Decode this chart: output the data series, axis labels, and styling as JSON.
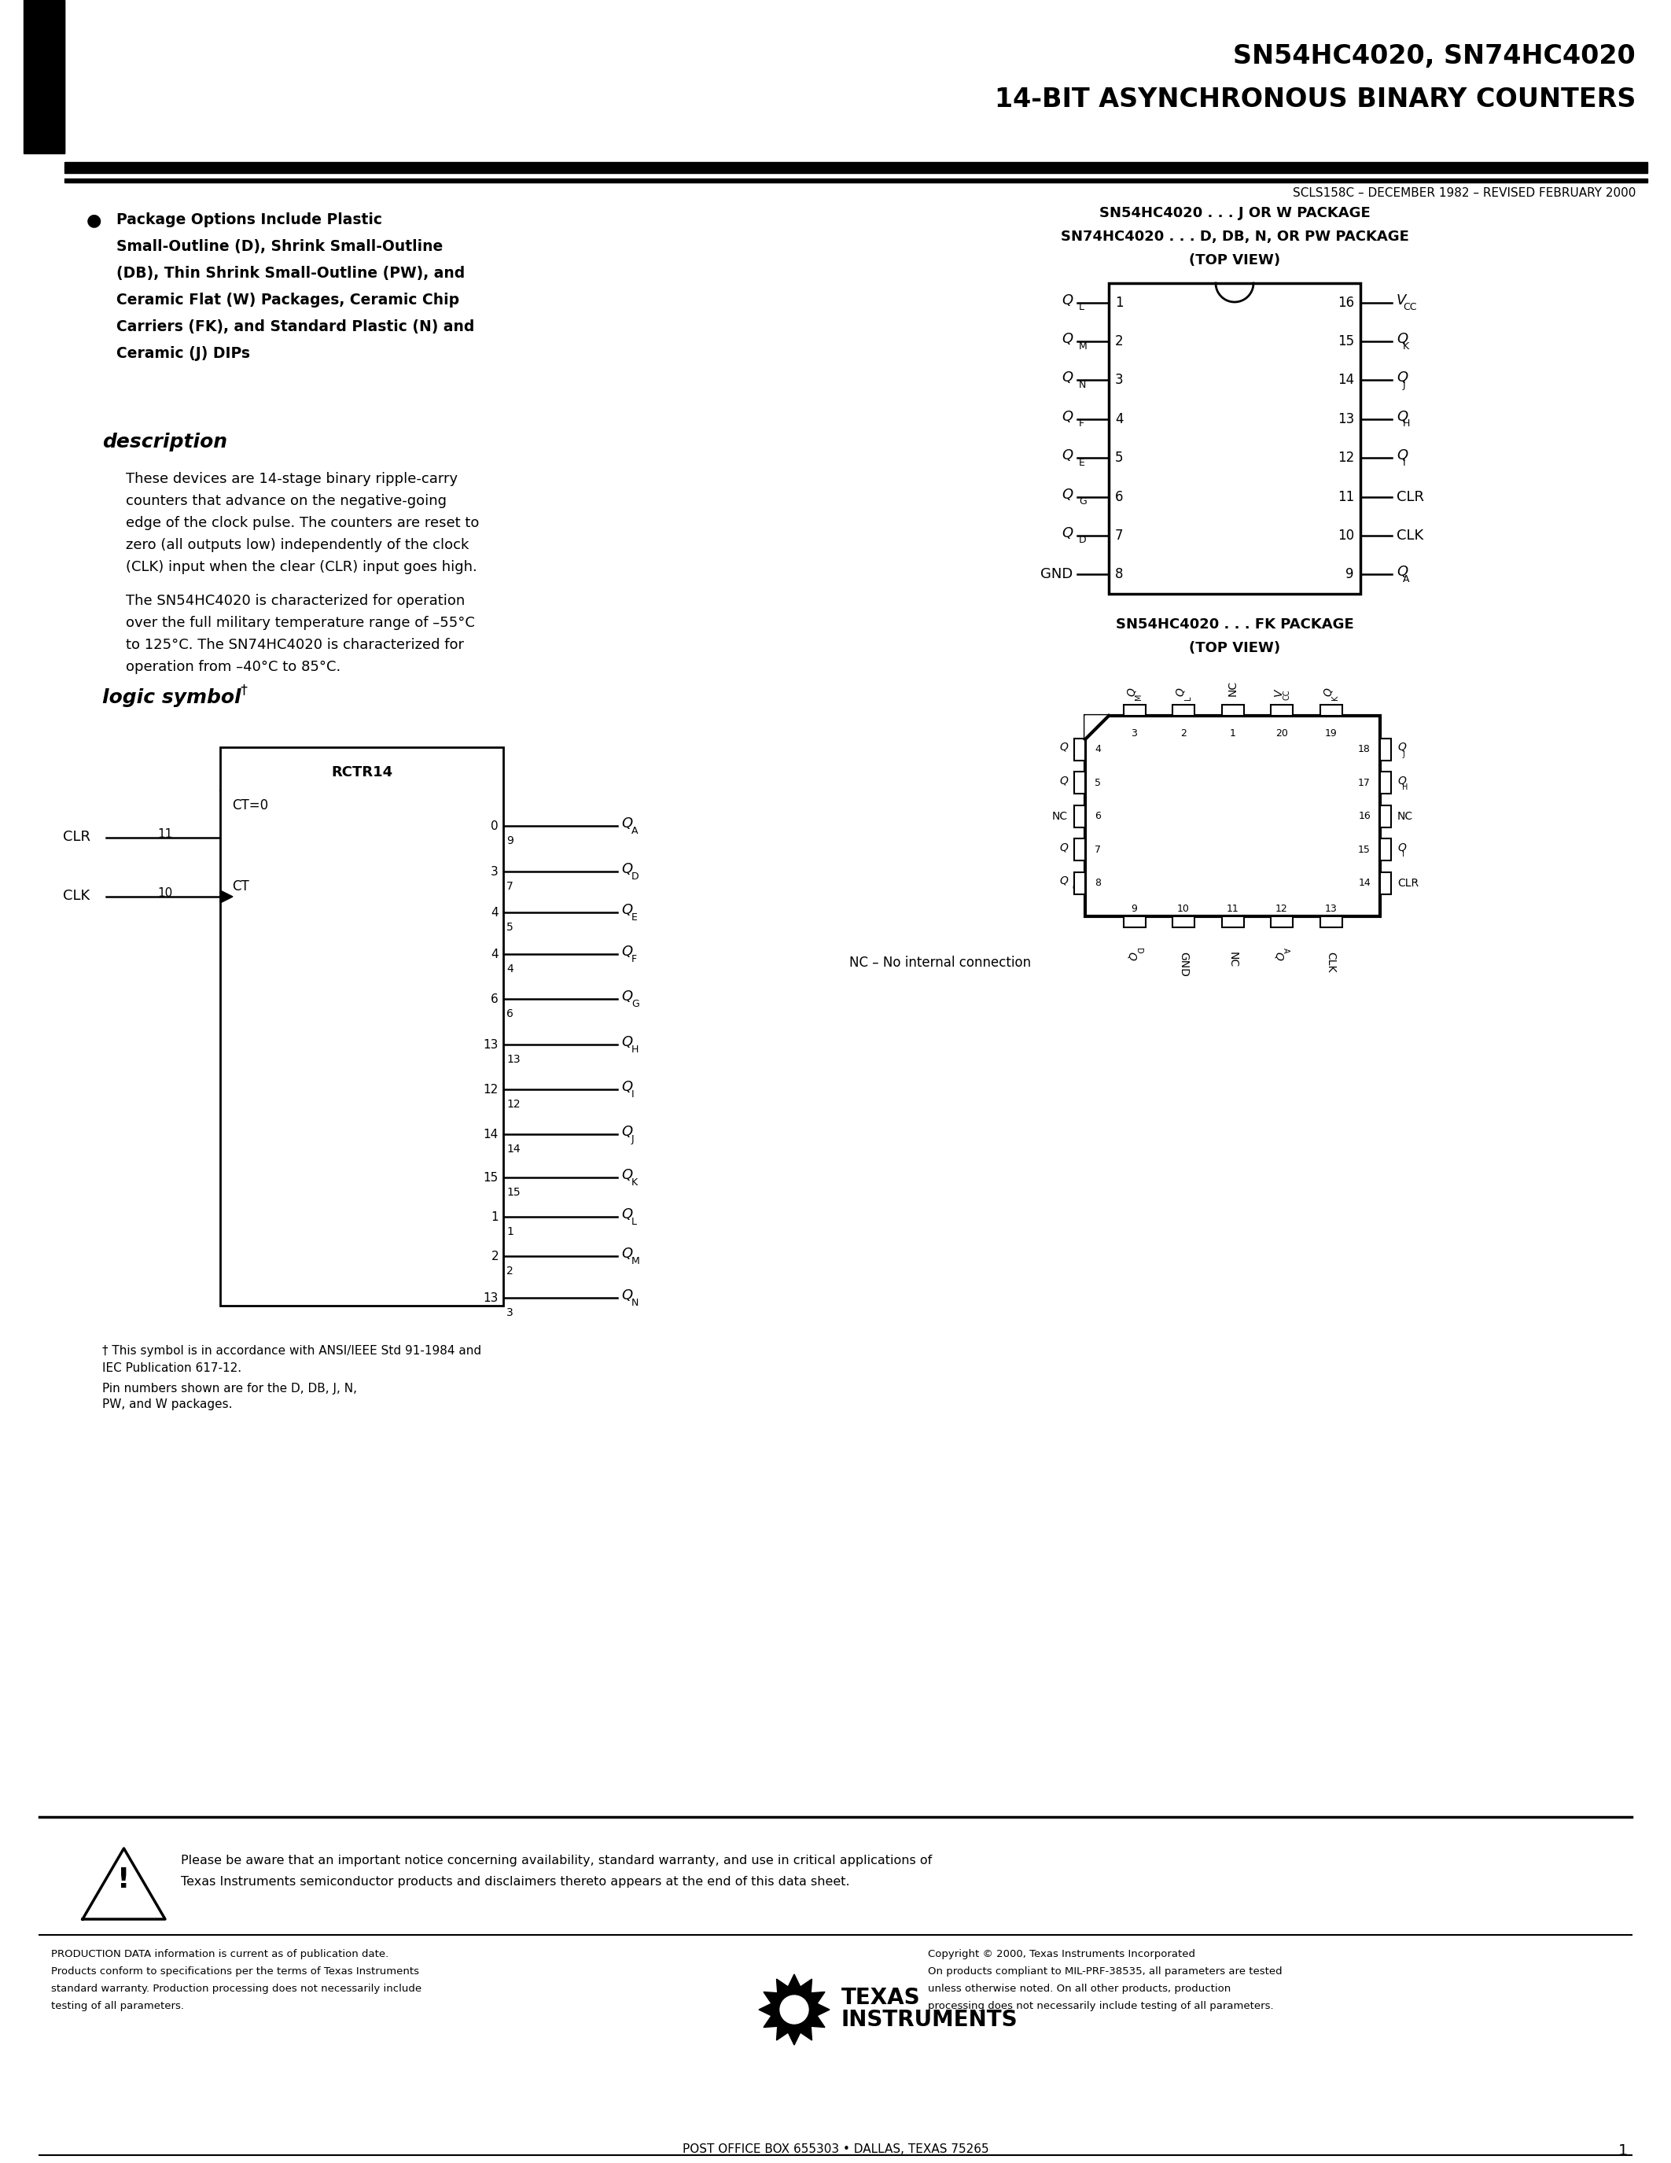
{
  "title_line1": "SN54HC4020, SN74HC4020",
  "title_line2": "14-BIT ASYNCHRONOUS BINARY COUNTERS",
  "scls": "SCLS158C – DECEMBER 1982 – REVISED FEBRUARY 2000",
  "dip_title1": "SN54HC4020 . . . J OR W PACKAGE",
  "dip_title2": "SN74HC4020 . . . D, DB, N, OR PW PACKAGE",
  "dip_title3": "(TOP VIEW)",
  "fk_title1": "SN54HC4020 . . . FK PACKAGE",
  "fk_title2": "(TOP VIEW)",
  "desc_title": "description",
  "desc1": [
    "These devices are 14-stage binary ripple-carry",
    "counters that advance on the negative-going",
    "edge of the clock pulse. The counters are reset to",
    "zero (all outputs low) independently of the clock",
    "(CLK) input when the clear (CLR) input goes high."
  ],
  "desc2": [
    "The SN54HC4020 is characterized for operation",
    "over the full military temperature range of –55°C",
    "to 125°C. The SN74HC4020 is characterized for",
    "operation from –40°C to 85°C."
  ],
  "logic_title": "logic symbol",
  "dagger": "†",
  "nc_text": "NC – No internal connection",
  "footer1a": "† This symbol is in accordance with ANSI/IEEE Std 91-1984 and",
  "footer1b": "IEC Publication 617-12.",
  "footer2a": "Pin numbers shown are for the D, DB, J, N,",
  "footer2b": "PW, and W packages.",
  "warning_line1": "Please be aware that an important notice concerning availability, standard warranty, and use in critical applications of",
  "warning_line2": "Texas Instruments semiconductor products and disclaimers thereto appears at the end of this data sheet.",
  "prod1": "PRODUCTION DATA information is current as of publication date.",
  "prod2": "Products conform to specifications per the terms of Texas Instruments",
  "prod3": "standard warranty. Production processing does not necessarily include",
  "prod4": "testing of all parameters.",
  "copy1": "Copyright © 2000, Texas Instruments Incorporated",
  "copy2": "On products compliant to MIL-PRF-38535, all parameters are tested",
  "copy3": "unless otherwise noted. On all other products, production",
  "copy4": "processing does not necessarily include testing of all parameters.",
  "post_office": "POST OFFICE BOX 655303 • DALLAS, TEXAS 75265",
  "page_num": "1",
  "bullet_lines": [
    "Package Options Include Plastic",
    "Small-Outline (D), Shrink Small-Outline",
    "(DB), Thin Shrink Small-Outline (PW), and",
    "Ceramic Flat (W) Packages, Ceramic Chip",
    "Carriers (FK), and Standard Plastic (N) and",
    "Ceramic (J) DIPs"
  ]
}
